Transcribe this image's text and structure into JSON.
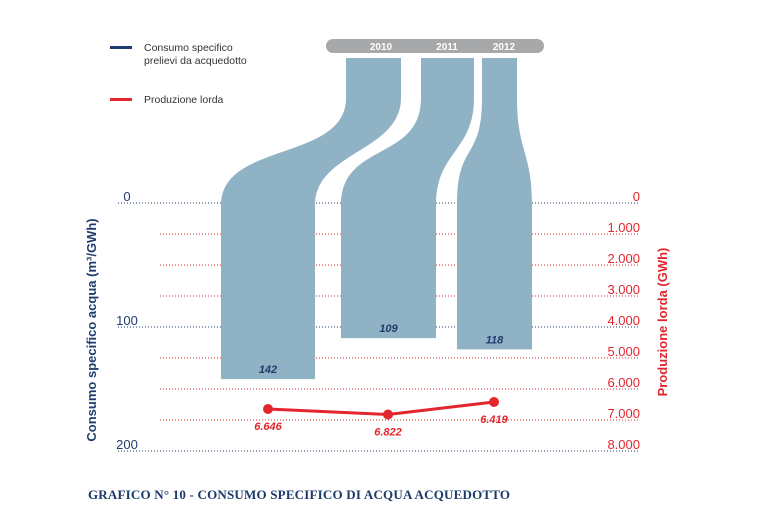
{
  "caption": "GRAFICO N° 10 - CONSUMO SPECIFICO DI ACQUA ACQUEDOTTO",
  "colors": {
    "navy": "#1f3c6e",
    "red": "#e3262e",
    "bar": "#8fb2c4",
    "header": "#a7a8aa"
  },
  "chart_data": {
    "type": "bar",
    "categories": [
      "2010",
      "2011",
      "2012"
    ],
    "series": [
      {
        "name": "Consumo specifico prelievi da acquedotto",
        "axis": "left",
        "values": [
          142,
          109,
          118
        ],
        "labels": [
          "142",
          "109",
          "118"
        ]
      },
      {
        "name": "Produzione lorda",
        "axis": "right",
        "type": "line",
        "values": [
          6646,
          6822,
          6419
        ],
        "labels": [
          "6.646",
          "6.822",
          "6.419"
        ]
      }
    ],
    "left_axis": {
      "label": "Consumo specifico acqua (m³/GWh)",
      "range": [
        0,
        200
      ],
      "ticks": [
        {
          "value": 0,
          "label": "0"
        },
        {
          "value": 100,
          "label": "100"
        },
        {
          "value": 200,
          "label": "200"
        }
      ],
      "inverted": true
    },
    "right_axis": {
      "label": "Produzione lorda (GWh)",
      "range": [
        0,
        8000
      ],
      "ticks": [
        {
          "value": 0,
          "label": "0"
        },
        {
          "value": 1000,
          "label": "1.000"
        },
        {
          "value": 2000,
          "label": "2.000"
        },
        {
          "value": 3000,
          "label": "3.000"
        },
        {
          "value": 4000,
          "label": "4.000"
        },
        {
          "value": 5000,
          "label": "5.000"
        },
        {
          "value": 6000,
          "label": "6.000"
        },
        {
          "value": 7000,
          "label": "7.000"
        },
        {
          "value": 8000,
          "label": "8.000"
        }
      ],
      "inverted": true
    },
    "legend": {
      "placement": "top-left",
      "items": [
        {
          "label_lines": [
            "Consumo specifico",
            "prelievi da acquedotto"
          ],
          "color": "#1f3c6e"
        },
        {
          "label_lines": [
            "Produzione lorda"
          ],
          "color": "#e3262e"
        }
      ]
    },
    "grid": true
  }
}
